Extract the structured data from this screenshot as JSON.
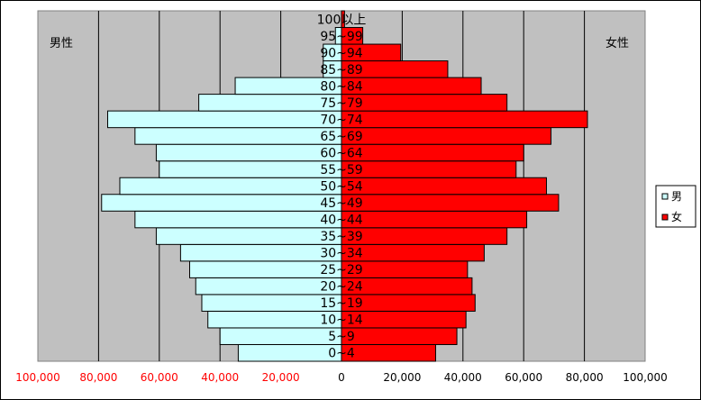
{
  "chart_data": {
    "type": "bar",
    "subtype": "population-pyramid",
    "categories": [
      "0~4",
      "5~9",
      "10~14",
      "15~19",
      "20~24",
      "25~29",
      "30~34",
      "35~39",
      "40~44",
      "45~49",
      "50~54",
      "55~59",
      "60~64",
      "65~69",
      "70~74",
      "75~79",
      "80~84",
      "85~89",
      "90~94",
      "95~99",
      "100以上"
    ],
    "series": [
      {
        "name": "男",
        "color": "#ccffff",
        "values": [
          34000,
          40000,
          44000,
          46000,
          48000,
          50000,
          53000,
          61000,
          68000,
          79000,
          73000,
          60000,
          61000,
          68000,
          77000,
          47000,
          35000,
          6000,
          6000,
          2000,
          0
        ]
      },
      {
        "name": "女",
        "color": "#ff0000",
        "values": [
          31000,
          38000,
          41000,
          44000,
          43000,
          41500,
          47000,
          54500,
          61000,
          71500,
          67500,
          57500,
          60000,
          69000,
          81000,
          54500,
          46000,
          35000,
          19500,
          7000,
          1000
        ]
      }
    ],
    "xlim": [
      -100000,
      100000
    ],
    "xticks": [
      "100,000",
      "80,000",
      "60,000",
      "40,000",
      "20,000",
      "0",
      "20,000",
      "40,000",
      "60,000",
      "80,000",
      "100,000"
    ],
    "left_label": "男性",
    "right_label": "女性",
    "legend_position": "right",
    "grid": true,
    "plot_background": "#c0c0c0"
  }
}
